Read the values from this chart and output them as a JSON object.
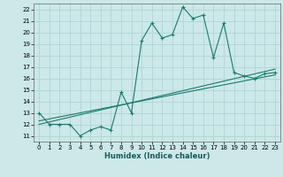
{
  "xlabel": "Humidex (Indice chaleur)",
  "xlim": [
    -0.5,
    23.5
  ],
  "ylim": [
    10.5,
    22.5
  ],
  "xticks": [
    0,
    1,
    2,
    3,
    4,
    5,
    6,
    7,
    8,
    9,
    10,
    11,
    12,
    13,
    14,
    15,
    16,
    17,
    18,
    19,
    20,
    21,
    22,
    23
  ],
  "yticks": [
    11,
    12,
    13,
    14,
    15,
    16,
    17,
    18,
    19,
    20,
    21,
    22
  ],
  "bg_color": "#cce8e8",
  "grid_color": "#b0d4d4",
  "line_color": "#1a7a6e",
  "curve_x": [
    0,
    1,
    2,
    3,
    4,
    5,
    6,
    7,
    8,
    9,
    10,
    11,
    12,
    13,
    14,
    15,
    16,
    17,
    18,
    19,
    20,
    21,
    22,
    23
  ],
  "curve_y": [
    13,
    12,
    12,
    12,
    11,
    11.5,
    11.8,
    11.5,
    14.8,
    13.0,
    19.3,
    20.8,
    19.5,
    19.8,
    22.2,
    21.2,
    21.5,
    17.8,
    20.8,
    16.5,
    16.2,
    16.0,
    16.4,
    16.5
  ],
  "line1_x": [
    0,
    23
  ],
  "line1_y": [
    12.0,
    16.8
  ],
  "line2_x": [
    0,
    23
  ],
  "line2_y": [
    12.3,
    16.3
  ]
}
